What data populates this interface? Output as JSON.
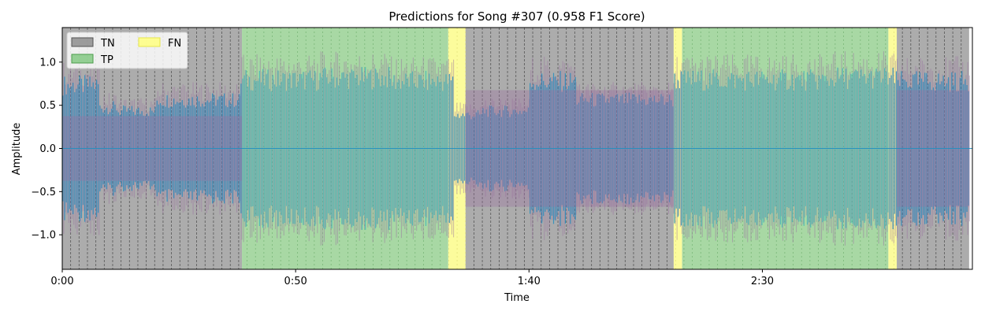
{
  "chart_data": {
    "type": "area",
    "title": "Predictions for Song #307 (0.958 F1 Score)",
    "xlabel": "Time",
    "ylabel": "Amplitude",
    "xlim": [
      0,
      195
    ],
    "ylim": [
      -1.4,
      1.4
    ],
    "x_ticks": [
      {
        "value": 0,
        "label": "0:00"
      },
      {
        "value": 50,
        "label": "0:50"
      },
      {
        "value": 100,
        "label": "1:40"
      },
      {
        "value": 150,
        "label": "2:30"
      }
    ],
    "y_ticks": [
      {
        "value": 1.0,
        "label": "1.0"
      },
      {
        "value": 0.5,
        "label": "0.5"
      },
      {
        "value": 0.0,
        "label": "0.0"
      },
      {
        "value": -0.5,
        "label": "−0.5"
      },
      {
        "value": -1.0,
        "label": "−1.0"
      }
    ],
    "segment_length_s": 1.8,
    "regions": [
      {
        "label": "TN",
        "start": 0,
        "end": 38.5
      },
      {
        "label": "TP",
        "start": 38.5,
        "end": 82.7
      },
      {
        "label": "FN",
        "start": 82.7,
        "end": 86.4
      },
      {
        "label": "TN",
        "start": 86.4,
        "end": 131
      },
      {
        "label": "FN",
        "start": 131,
        "end": 132.8
      },
      {
        "label": "TP",
        "start": 132.8,
        "end": 177
      },
      {
        "label": "FN",
        "start": 177,
        "end": 178.8
      },
      {
        "label": "TN",
        "start": 178.8,
        "end": 194.3
      }
    ],
    "waveform_envelope": [
      {
        "start": 0,
        "end": 8,
        "peak": 0.85
      },
      {
        "start": 8,
        "end": 12,
        "peak": 0.55
      },
      {
        "start": 12,
        "end": 20,
        "peak": 0.5
      },
      {
        "start": 20,
        "end": 38,
        "peak": 0.65
      },
      {
        "start": 38,
        "end": 55,
        "peak": 0.92
      },
      {
        "start": 55,
        "end": 70,
        "peak": 0.95
      },
      {
        "start": 70,
        "end": 84,
        "peak": 0.9
      },
      {
        "start": 84,
        "end": 90,
        "peak": 0.45
      },
      {
        "start": 90,
        "end": 100,
        "peak": 0.5
      },
      {
        "start": 100,
        "end": 110,
        "peak": 0.9
      },
      {
        "start": 110,
        "end": 131,
        "peak": 0.65
      },
      {
        "start": 131,
        "end": 165,
        "peak": 0.92
      },
      {
        "start": 165,
        "end": 178,
        "peak": 0.95
      },
      {
        "start": 178,
        "end": 195,
        "peak": 0.9
      }
    ],
    "legend": {
      "placement": "top-left",
      "items": [
        {
          "label": "TN",
          "color": "#808080"
        },
        {
          "label": "FN",
          "color": "#ffff80"
        },
        {
          "label": "TP",
          "color": "#6cc06c"
        }
      ]
    },
    "colors": {
      "TN": "#acacac",
      "TP": "#a8d8a4",
      "FN": "#fcfc9c",
      "waveform_primary": "#1f8fc0",
      "waveform_secondary": "#9a6fa0",
      "waveform_tp": "#3fb8b8",
      "divider": "#333333"
    }
  }
}
